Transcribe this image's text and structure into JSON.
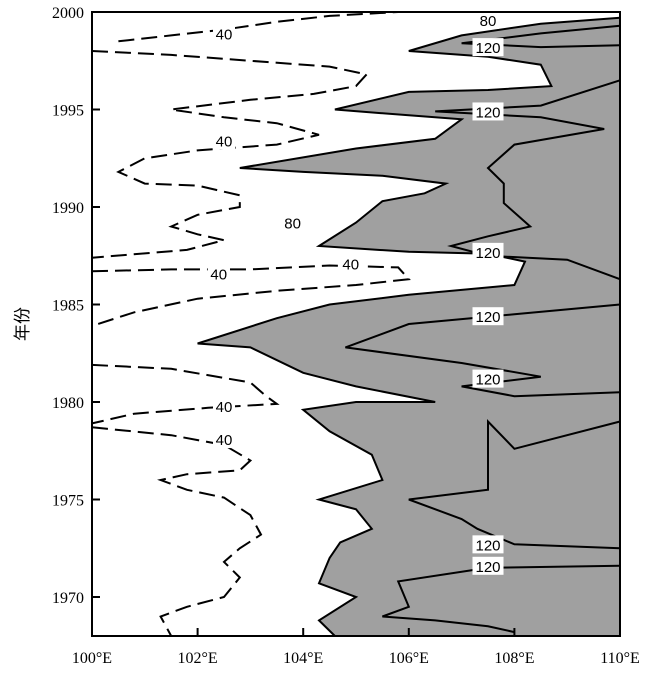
{
  "chart_data": {
    "type": "contour",
    "title": "",
    "xlabel": "",
    "ylabel": "年份",
    "xlim": [
      100,
      110
    ],
    "ylim": [
      1968,
      2000
    ],
    "x_ticks": [
      {
        "value": 100,
        "label": "100°E"
      },
      {
        "value": 102,
        "label": "102°E"
      },
      {
        "value": 104,
        "label": "104°E"
      },
      {
        "value": 106,
        "label": "106°E"
      },
      {
        "value": 108,
        "label": "108°E"
      },
      {
        "value": 110,
        "label": "110°E"
      }
    ],
    "y_ticks": [
      {
        "value": 1970,
        "label": "1970"
      },
      {
        "value": 1975,
        "label": "1975"
      },
      {
        "value": 1980,
        "label": "1980"
      },
      {
        "value": 1985,
        "label": "1985"
      },
      {
        "value": 1990,
        "label": "1990"
      },
      {
        "value": 1995,
        "label": "1995"
      },
      {
        "value": 2000,
        "label": "2000"
      }
    ],
    "shading": {
      "description": "values above 80 shaded",
      "color": "#a0a0a0"
    },
    "contours": [
      {
        "level": 40,
        "style": "dashed",
        "color": "#000000",
        "points": [
          [
            100.5,
            1998.5
          ],
          [
            101.5,
            1998.8
          ],
          [
            102.5,
            1999.1
          ],
          [
            103.5,
            1999.5
          ],
          [
            104.5,
            1999.8
          ],
          [
            105.8,
            2000
          ]
        ]
      },
      {
        "level": 40,
        "style": "dashed",
        "color": "#000000",
        "points": [
          [
            100,
            1998.0
          ],
          [
            101.5,
            1997.8
          ],
          [
            103,
            1997.5
          ],
          [
            104.5,
            1997.2
          ],
          [
            105.2,
            1996.8
          ],
          [
            105.0,
            1996.2
          ],
          [
            104.2,
            1995.8
          ],
          [
            103,
            1995.5
          ],
          [
            101.5,
            1995.0
          ],
          [
            102.5,
            1994.6
          ],
          [
            103.5,
            1994.3
          ],
          [
            104.3,
            1993.7
          ],
          [
            103.5,
            1993.2
          ],
          [
            102.0,
            1992.9
          ],
          [
            101.0,
            1992.5
          ],
          [
            100.5,
            1991.8
          ],
          [
            101.0,
            1991.2
          ],
          [
            102.0,
            1991.1
          ],
          [
            102.8,
            1990.6
          ],
          [
            102.8,
            1990.0
          ],
          [
            102.0,
            1989.6
          ],
          [
            101.5,
            1989.0
          ],
          [
            102.0,
            1988.6
          ],
          [
            102.5,
            1988.3
          ],
          [
            101.8,
            1987.8
          ],
          [
            100.0,
            1987.4
          ]
        ]
      },
      {
        "level": 40,
        "style": "dashed",
        "color": "#000000",
        "points": [
          [
            100,
            1986.7
          ],
          [
            101.5,
            1986.8
          ],
          [
            103,
            1986.8
          ],
          [
            104.5,
            1987.0
          ],
          [
            105.8,
            1986.9
          ],
          [
            106.0,
            1986.3
          ],
          [
            105.0,
            1986.0
          ],
          [
            103.5,
            1985.7
          ],
          [
            102.0,
            1985.3
          ],
          [
            100.8,
            1984.6
          ],
          [
            100,
            1983.9
          ]
        ]
      },
      {
        "level": 40,
        "style": "dashed",
        "color": "#000000",
        "points": [
          [
            100,
            1981.9
          ],
          [
            101.5,
            1981.7
          ],
          [
            103,
            1981.0
          ],
          [
            103.3,
            1980.3
          ],
          [
            103.5,
            1979.9
          ],
          [
            102.2,
            1979.7
          ],
          [
            100.8,
            1979.4
          ],
          [
            100,
            1978.9
          ]
        ]
      },
      {
        "level": 40,
        "style": "dashed",
        "color": "#000000",
        "points": [
          [
            100,
            1978.7
          ],
          [
            101.5,
            1978.3
          ],
          [
            102.5,
            1977.8
          ],
          [
            103.0,
            1977.0
          ],
          [
            102.8,
            1976.5
          ],
          [
            101.8,
            1976.3
          ],
          [
            101.3,
            1976.0
          ],
          [
            101.8,
            1975.5
          ],
          [
            102.5,
            1975.1
          ],
          [
            103.0,
            1974.2
          ],
          [
            103.2,
            1973.2
          ],
          [
            102.8,
            1972.5
          ],
          [
            102.5,
            1971.8
          ],
          [
            102.8,
            1971.0
          ],
          [
            102.5,
            1970.0
          ],
          [
            101.8,
            1969.5
          ],
          [
            101.3,
            1969.0
          ],
          [
            101.5,
            1968
          ]
        ]
      }
    ],
    "filled_regions": [
      {
        "level": 80,
        "fill": "#a0a0a0",
        "points": [
          [
            110,
            1999.7
          ],
          [
            108.5,
            1999.4
          ],
          [
            107.0,
            1998.8
          ],
          [
            106.0,
            1998.0
          ],
          [
            107.5,
            1997.7
          ],
          [
            108.5,
            1997.3
          ],
          [
            108.7,
            1996.2
          ],
          [
            107.5,
            1996.0
          ],
          [
            106.0,
            1995.9
          ],
          [
            104.6,
            1995.0
          ],
          [
            106.0,
            1994.7
          ],
          [
            107.0,
            1994.5
          ],
          [
            106.5,
            1993.5
          ],
          [
            105.0,
            1993.0
          ],
          [
            102.8,
            1992.0
          ],
          [
            104.0,
            1991.8
          ],
          [
            105.5,
            1991.6
          ],
          [
            106.7,
            1991.2
          ],
          [
            106.3,
            1990.7
          ],
          [
            105.5,
            1990.3
          ],
          [
            105.0,
            1989.2
          ],
          [
            104.3,
            1988.0
          ],
          [
            106.0,
            1987.7
          ],
          [
            107.5,
            1987.6
          ],
          [
            108.2,
            1987.2
          ],
          [
            108.0,
            1986.0
          ],
          [
            106.0,
            1985.5
          ],
          [
            104.5,
            1985.0
          ],
          [
            103.5,
            1984.3
          ],
          [
            102.0,
            1983.0
          ],
          [
            103.0,
            1982.8
          ],
          [
            104.0,
            1981.5
          ],
          [
            105.0,
            1980.8
          ],
          [
            106.5,
            1980.0
          ],
          [
            105.0,
            1980.0
          ],
          [
            104.0,
            1979.6
          ],
          [
            104.5,
            1978.5
          ],
          [
            105.3,
            1977.3
          ],
          [
            105.5,
            1976.0
          ],
          [
            104.3,
            1975.0
          ],
          [
            105.0,
            1974.5
          ],
          [
            105.3,
            1973.5
          ],
          [
            104.7,
            1972.8
          ],
          [
            104.5,
            1972.0
          ],
          [
            104.3,
            1970.7
          ],
          [
            105.0,
            1970.0
          ],
          [
            104.3,
            1968.8
          ],
          [
            104.6,
            1968
          ],
          [
            110,
            1968
          ]
        ]
      }
    ],
    "bold_contours": [
      {
        "level": 120,
        "style": "solid",
        "color": "#000000",
        "points": [
          [
            110,
            1999.3
          ],
          [
            108.5,
            1998.9
          ],
          [
            107.0,
            1998.4
          ],
          [
            108.5,
            1998.2
          ],
          [
            110,
            1998.3
          ]
        ]
      },
      {
        "level": 120,
        "style": "solid",
        "color": "#000000",
        "points": [
          [
            110,
            1996.5
          ],
          [
            108.5,
            1995.2
          ],
          [
            106.5,
            1994.9
          ],
          [
            108.5,
            1994.6
          ],
          [
            109.7,
            1994.0
          ],
          [
            108.0,
            1993.2
          ],
          [
            107.5,
            1992.0
          ],
          [
            107.8,
            1991.2
          ],
          [
            107.8,
            1990.2
          ],
          [
            108.3,
            1989.0
          ],
          [
            107.5,
            1988.5
          ],
          [
            106.8,
            1988.0
          ],
          [
            107.5,
            1987.5
          ],
          [
            109.0,
            1987.3
          ],
          [
            110,
            1986.3
          ]
        ]
      },
      {
        "level": 120,
        "style": "solid",
        "color": "#000000",
        "points": [
          [
            110,
            1985.0
          ],
          [
            108.0,
            1984.5
          ],
          [
            106.0,
            1984.0
          ],
          [
            104.8,
            1982.8
          ],
          [
            107.0,
            1982.0
          ],
          [
            108.5,
            1981.3
          ],
          [
            107.0,
            1980.8
          ],
          [
            108.0,
            1980.3
          ],
          [
            110,
            1980.5
          ]
        ]
      },
      {
        "level": 120,
        "style": "solid",
        "color": "#000000",
        "points": [
          [
            110,
            1979.0
          ],
          [
            108.0,
            1977.6
          ],
          [
            107.5,
            1979.0
          ],
          [
            107.5,
            1977.0
          ],
          [
            107.5,
            1975.5
          ],
          [
            106.0,
            1975.0
          ],
          [
            107.0,
            1974.0
          ],
          [
            107.3,
            1973.5
          ],
          [
            108.0,
            1972.7
          ],
          [
            110,
            1972.5
          ]
        ]
      },
      {
        "level": 120,
        "style": "solid",
        "color": "#000000",
        "points": [
          [
            110,
            1971.6
          ],
          [
            107.5,
            1971.5
          ],
          [
            105.8,
            1970.8
          ],
          [
            106.0,
            1969.5
          ],
          [
            105.5,
            1969.0
          ],
          [
            106.5,
            1968.8
          ],
          [
            107.5,
            1968.5
          ],
          [
            108.0,
            1968.2
          ]
        ]
      }
    ],
    "contour_labels": [
      {
        "text": "40",
        "x": 102.5,
        "y": 1998.9
      },
      {
        "text": "40",
        "x": 102.5,
        "y": 1993.4
      },
      {
        "text": "40",
        "x": 102.4,
        "y": 1986.6
      },
      {
        "text": "40",
        "x": 104.9,
        "y": 1987.1
      },
      {
        "text": "40",
        "x": 102.5,
        "y": 1979.8
      },
      {
        "text": "40",
        "x": 102.5,
        "y": 1978.1
      },
      {
        "text": "80",
        "x": 103.8,
        "y": 1989.2
      },
      {
        "text": "80",
        "x": 107.5,
        "y": 1999.6
      },
      {
        "text": "120",
        "x": 107.5,
        "y": 1998.2
      },
      {
        "text": "120",
        "x": 107.5,
        "y": 1994.9
      },
      {
        "text": "120",
        "x": 107.5,
        "y": 1987.7
      },
      {
        "text": "120",
        "x": 107.5,
        "y": 1984.4
      },
      {
        "text": "120",
        "x": 107.5,
        "y": 1981.2
      },
      {
        "text": "120",
        "x": 107.5,
        "y": 1972.7
      },
      {
        "text": "120",
        "x": 107.5,
        "y": 1971.6
      }
    ]
  }
}
